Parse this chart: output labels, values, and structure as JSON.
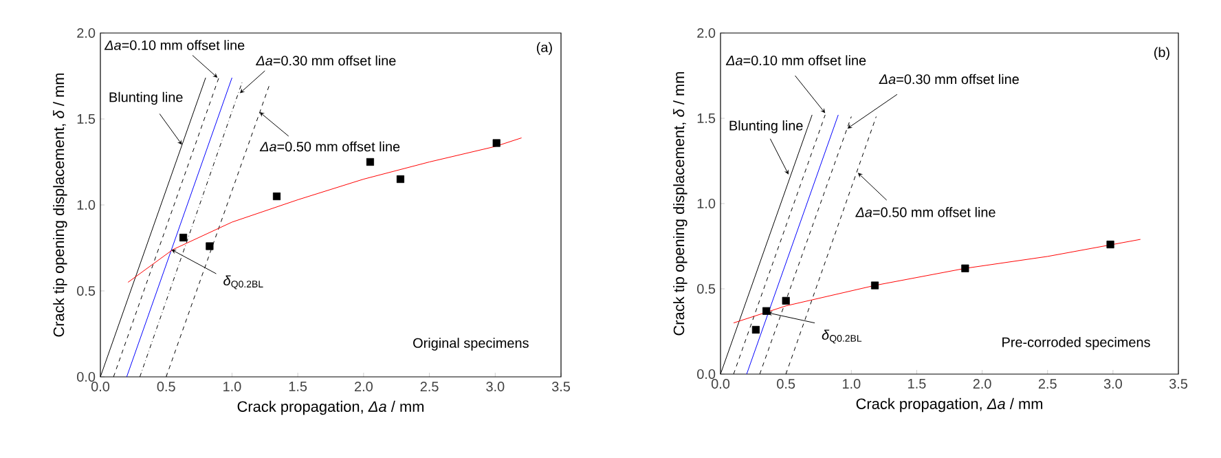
{
  "chart_data": [
    {
      "type": "line",
      "xlabel": "Crack propagation, *Δa* / mm",
      "ylabel": "Crack tip opening displacement, *δ* / mm",
      "xlim": [
        0,
        3.5
      ],
      "ylim": [
        0,
        2
      ],
      "xticks": [
        {
          "value": 0,
          "label": "0.0"
        },
        {
          "value": 0.5,
          "label": "0.5"
        },
        {
          "value": 1,
          "label": "1.0"
        },
        {
          "value": 1.5,
          "label": "1.5"
        },
        {
          "value": 2,
          "label": "2.0"
        },
        {
          "value": 2.5,
          "label": "2.5"
        },
        {
          "value": 3,
          "label": "3.0"
        },
        {
          "value": 3.5,
          "label": "3.5"
        }
      ],
      "yticks": [
        {
          "value": 0,
          "label": "0.0"
        },
        {
          "value": 0.5,
          "label": "0.5"
        },
        {
          "value": 1,
          "label": "1.0"
        },
        {
          "value": 1.5,
          "label": "1.5"
        },
        {
          "value": 2,
          "label": "2.0"
        }
      ],
      "series": [
        {
          "color": "#000000",
          "line_style": "solid",
          "x": [
            0,
            0.8
          ],
          "values": [
            0,
            1.74
          ]
        },
        {
          "color": "#000000",
          "line_style": "dashed",
          "x": [
            0.1,
            0.9
          ],
          "values": [
            0,
            1.74
          ]
        },
        {
          "color": "#0000ff",
          "line_style": "solid",
          "x": [
            0.2,
            1.0
          ],
          "values": [
            0,
            1.74
          ]
        },
        {
          "color": "#000000",
          "line_style": "dashdot",
          "x": [
            0.3,
            1.08
          ],
          "values": [
            0,
            1.72
          ]
        },
        {
          "color": "#000000",
          "line_style": "dashed",
          "x": [
            0.5,
            1.29
          ],
          "values": [
            0,
            1.71
          ]
        },
        {
          "color": "#ff0000",
          "line_style": "solid",
          "x": [
            0.21,
            0.55,
            1.0,
            1.5,
            2.0,
            2.5,
            3.0,
            3.2
          ],
          "values": [
            0.55,
            0.74,
            0.9,
            1.03,
            1.15,
            1.25,
            1.34,
            1.39
          ]
        },
        {
          "type": "scatter",
          "color": "#000000",
          "marker": "square",
          "x": [
            0.63,
            0.83,
            1.34,
            2.05,
            2.28,
            3.01
          ],
          "values": [
            0.81,
            0.76,
            1.05,
            1.25,
            1.15,
            1.36
          ]
        }
      ],
      "annotations": [
        "(a)",
        "Original specimens",
        {
          "text": "Blunting line",
          "x": 0.62,
          "y": 1.35
        },
        {
          "text": "*Δa*=0.10 mm offset line",
          "x": 0.89,
          "y": 1.74
        },
        {
          "text": "*Δa*=0.30 mm offset line",
          "x": 1.06,
          "y": 1.65
        },
        {
          "text": "*Δa*=0.50 mm  offset line",
          "x": 1.21,
          "y": 1.54
        },
        {
          "text": "*δ*$_{Q0.2BL}$",
          "x": 0.54,
          "y": 0.74
        }
      ]
    },
    {
      "type": "line",
      "xlabel": "Crack propagation, *Δa* / mm",
      "ylabel": "Crack tip opening displacement, *δ* / mm",
      "xlim": [
        0,
        3.5
      ],
      "ylim": [
        0,
        2
      ],
      "xticks": [
        {
          "value": 0,
          "label": "0.0"
        },
        {
          "value": 0.5,
          "label": "0.5"
        },
        {
          "value": 1,
          "label": "1.0"
        },
        {
          "value": 1.5,
          "label": "1.5"
        },
        {
          "value": 2,
          "label": "2.0"
        },
        {
          "value": 2.5,
          "label": "2.5"
        },
        {
          "value": 3,
          "label": "3.0"
        },
        {
          "value": 3.5,
          "label": "3.5"
        }
      ],
      "yticks": [
        {
          "value": 0,
          "label": "0.0"
        },
        {
          "value": 0.5,
          "label": "0.5"
        },
        {
          "value": 1,
          "label": "1.0"
        },
        {
          "value": 1.5,
          "label": "1.5"
        },
        {
          "value": 2,
          "label": "2.0"
        }
      ],
      "series": [
        {
          "color": "#000000",
          "line_style": "solid",
          "x": [
            0,
            0.7
          ],
          "values": [
            0,
            1.52
          ]
        },
        {
          "color": "#000000",
          "line_style": "dashed",
          "x": [
            0.1,
            0.8
          ],
          "values": [
            0,
            1.52
          ]
        },
        {
          "color": "#0000ff",
          "line_style": "solid",
          "x": [
            0.2,
            0.9
          ],
          "values": [
            0,
            1.52
          ]
        },
        {
          "color": "#000000",
          "line_style": "dashed",
          "x": [
            0.3,
            1.0
          ],
          "values": [
            0,
            1.51
          ]
        },
        {
          "color": "#000000",
          "line_style": "dashed",
          "x": [
            0.5,
            1.19
          ],
          "values": [
            0,
            1.51
          ]
        },
        {
          "color": "#ff0000",
          "line_style": "solid",
          "x": [
            0.1,
            0.5,
            1.18,
            1.87,
            2.5,
            3.21
          ],
          "values": [
            0.3,
            0.4,
            0.52,
            0.62,
            0.69,
            0.79
          ]
        },
        {
          "type": "scatter",
          "color": "#000000",
          "marker": "square",
          "x": [
            0.27,
            0.35,
            0.5,
            1.18,
            1.87,
            2.98
          ],
          "values": [
            0.26,
            0.37,
            0.43,
            0.52,
            0.62,
            0.76
          ]
        }
      ],
      "annotations": [
        "(b)",
        "Pre-corroded specimens",
        {
          "text": "Blunting line",
          "x": 0.52,
          "y": 1.17
        },
        {
          "text": "*Δa*=0.10 mm  offset line",
          "x": 0.8,
          "y": 1.53
        },
        {
          "text": "*Δa*=0.30 mm  offset line",
          "x": 0.97,
          "y": 1.44
        },
        {
          "text": "*Δa*=0.50 mm  offset line",
          "x": 1.05,
          "y": 1.18
        },
        {
          "text": "*δ*$_{Q0.2BL}$",
          "x": 0.36,
          "y": 0.36
        }
      ]
    }
  ]
}
